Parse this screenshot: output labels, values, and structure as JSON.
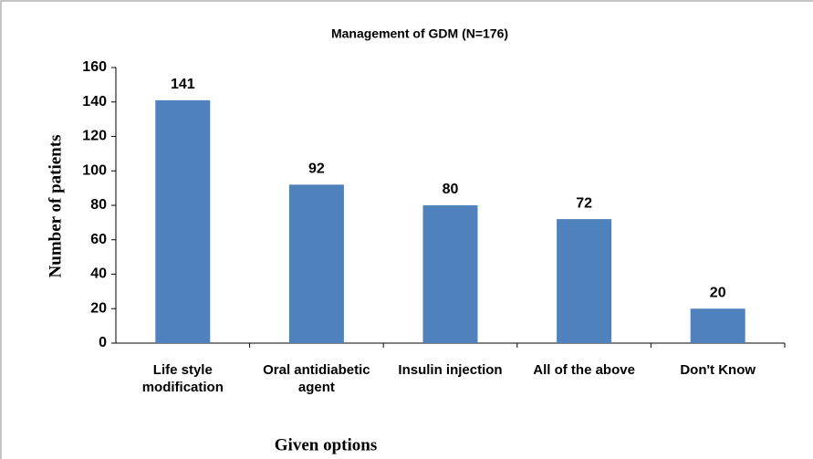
{
  "chart_data": {
    "type": "bar",
    "title": "Management of GDM (N=176)",
    "x_label": "Given options",
    "y_label": "Number of patients",
    "categories": [
      "Life style modification",
      "Oral antidiabetic agent",
      "Insulin injection",
      "All of the above",
      "Don't Know"
    ],
    "values": [
      141,
      92,
      80,
      72,
      20
    ],
    "color": "#4f81bd",
    "ylim": [
      0,
      160
    ],
    "yticks": [
      0,
      20,
      40,
      60,
      80,
      100,
      120,
      140,
      160
    ],
    "grid": false
  }
}
